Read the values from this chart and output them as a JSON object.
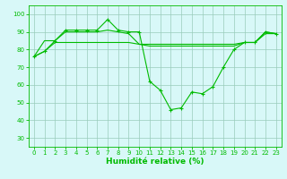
{
  "x": [
    0,
    1,
    2,
    3,
    4,
    5,
    6,
    7,
    8,
    9,
    10,
    11,
    12,
    13,
    14,
    15,
    16,
    17,
    18,
    19,
    20,
    21,
    22,
    23
  ],
  "series1": [
    76,
    79,
    85,
    91,
    91,
    91,
    91,
    97,
    91,
    90,
    90,
    62,
    57,
    46,
    47,
    56,
    55,
    59,
    70,
    80,
    84,
    84,
    90,
    89
  ],
  "series2": [
    76,
    85,
    85,
    90,
    90,
    90,
    90,
    91,
    90,
    89,
    83,
    82,
    82,
    82,
    82,
    82,
    82,
    82,
    82,
    82,
    84,
    84,
    90,
    89
  ],
  "series3": [
    76,
    79,
    84,
    84,
    84,
    84,
    84,
    84,
    84,
    84,
    83,
    83,
    83,
    83,
    83,
    83,
    83,
    83,
    83,
    83,
    84,
    84,
    89,
    89
  ],
  "line_color": "#00bb00",
  "marker_color": "#007700",
  "bg_color": "#d8f8f8",
  "grid_color": "#99ccbb",
  "xlabel": "Humidité relative (%)",
  "ylim": [
    25,
    105
  ],
  "xlim": [
    -0.5,
    23.5
  ],
  "yticks": [
    30,
    40,
    50,
    60,
    70,
    80,
    90,
    100
  ],
  "xticks": [
    0,
    1,
    2,
    3,
    4,
    5,
    6,
    7,
    8,
    9,
    10,
    11,
    12,
    13,
    14,
    15,
    16,
    17,
    18,
    19,
    20,
    21,
    22,
    23
  ]
}
